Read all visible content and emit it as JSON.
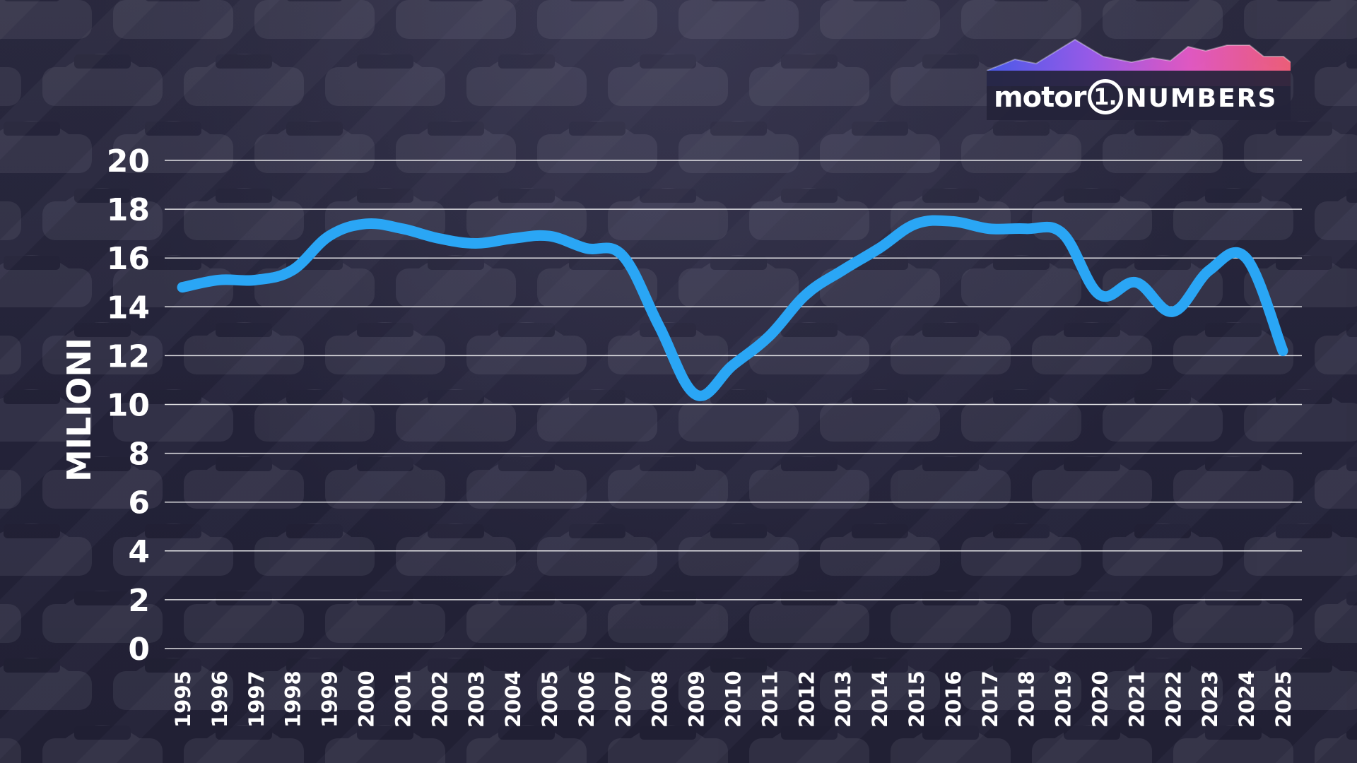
{
  "chart_data": {
    "type": "line",
    "title": "",
    "xlabel": "",
    "ylabel": "MILIONI",
    "ylim": [
      0,
      20
    ],
    "yticks": [
      0,
      2,
      4,
      6,
      8,
      10,
      12,
      14,
      16,
      18,
      20
    ],
    "grid": true,
    "categories": [
      "1995",
      "1996",
      "1997",
      "1998",
      "1999",
      "2000",
      "2001",
      "2002",
      "2003",
      "2004",
      "2005",
      "2006",
      "2007",
      "2008",
      "2009",
      "2010",
      "2011",
      "2012",
      "2013",
      "2014",
      "2015",
      "2016",
      "2017",
      "2018",
      "2019",
      "2020",
      "2021",
      "2022",
      "2023",
      "2024",
      "2025"
    ],
    "series": [
      {
        "values": [
          14.8,
          15.1,
          15.1,
          15.5,
          16.9,
          17.4,
          17.2,
          16.8,
          16.6,
          16.8,
          16.9,
          16.4,
          16.1,
          13.2,
          10.4,
          11.6,
          12.8,
          14.5,
          15.5,
          16.4,
          17.4,
          17.5,
          17.2,
          17.2,
          17.0,
          14.5,
          15.0,
          13.8,
          15.5,
          16.0,
          12.2
        ],
        "color": "#2aa6f5"
      }
    ],
    "colors": {
      "line": "#2aa6f5",
      "grid": "#ffffff",
      "text": "#ffffff",
      "background": "#24233a"
    }
  },
  "logo": {
    "brand": "motor",
    "mark": "1.",
    "product": "NUMBERS",
    "gradient": [
      "#4a5cf0",
      "#9a5cf0",
      "#e85ac8",
      "#f5607a"
    ]
  }
}
